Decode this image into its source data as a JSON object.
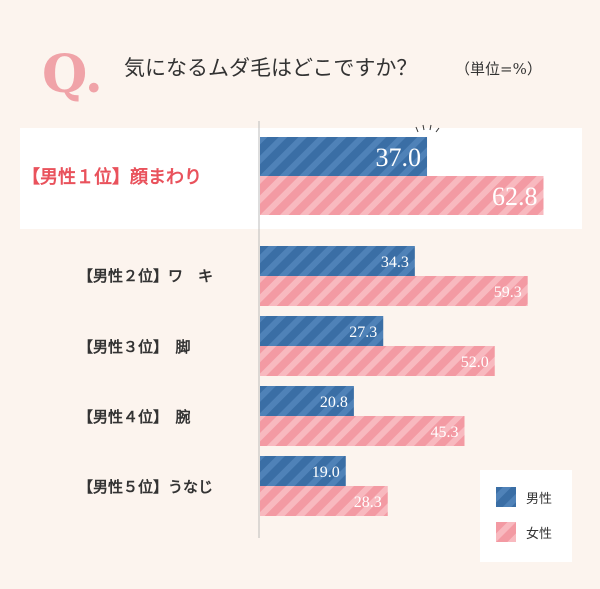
{
  "header": {
    "q_mark": "Q.",
    "question": "気になるムダ毛はどこですか？",
    "unit": "（単位=%）"
  },
  "colors": {
    "male": "#3a6ea5",
    "female": "#f4a0a8",
    "highlight_text": "#e9525c",
    "q_mark": "#f0a3a8",
    "background": "#fcf4ee"
  },
  "chart_data": {
    "type": "bar",
    "orientation": "horizontal",
    "categories": [
      "【男性１位】顔まわり",
      "【男性２位】ワ　キ",
      "【男性３位】　脚",
      "【男性４位】　腕",
      "【男性５位】うなじ"
    ],
    "series": [
      {
        "name": "男性",
        "values": [
          37.0,
          34.3,
          27.3,
          20.8,
          19.0
        ]
      },
      {
        "name": "女性",
        "values": [
          62.8,
          59.3,
          52.0,
          45.3,
          28.3
        ]
      }
    ],
    "value_labels": {
      "男性": [
        "37.0",
        "34.3",
        "27.3",
        "20.8",
        "19.0"
      ],
      "女性": [
        "62.8",
        "59.3",
        "52.0",
        "45.3",
        "28.3"
      ]
    },
    "highlight_index": 0,
    "legend": [
      "男性",
      "女性"
    ],
    "legend_position": "bottom-right",
    "xlim": [
      0,
      70
    ]
  }
}
